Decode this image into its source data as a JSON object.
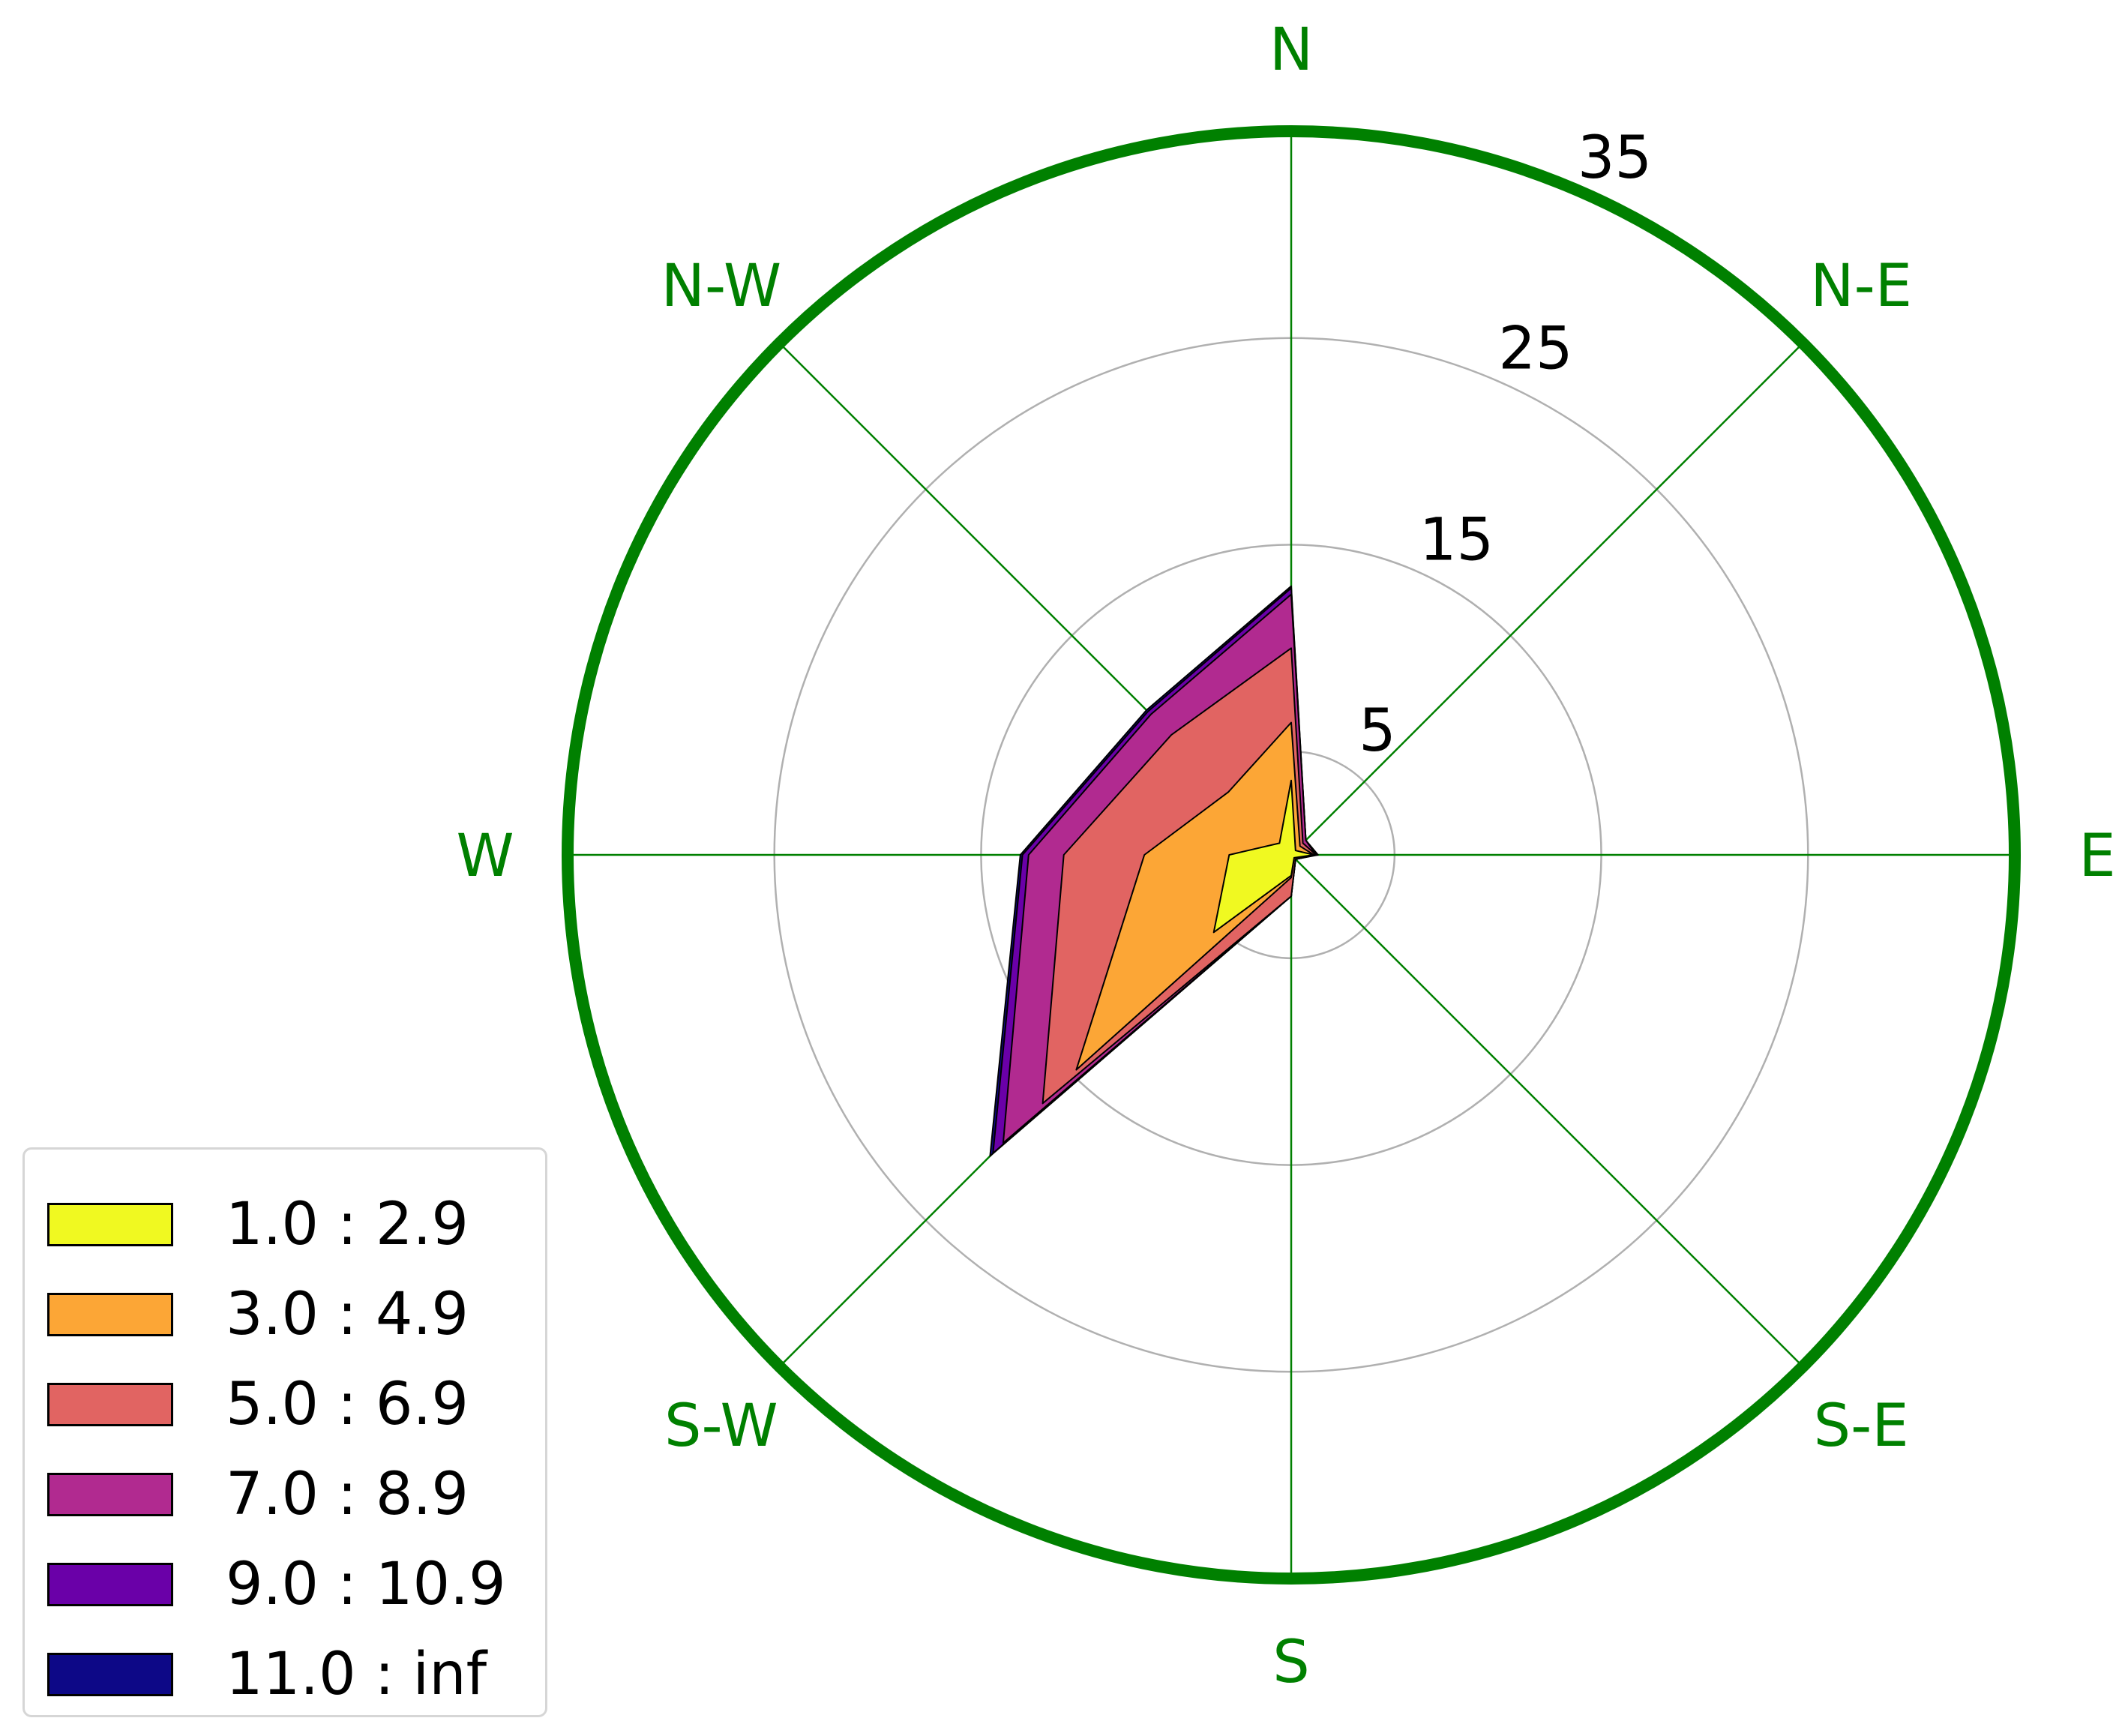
{
  "chart_data": {
    "type": "windrose-area",
    "directions": [
      "N",
      "N-E",
      "E",
      "S-E",
      "S",
      "S-W",
      "W",
      "N-W"
    ],
    "radial_ticks": [
      5,
      15,
      25,
      35
    ],
    "rmax": 35,
    "grid": true,
    "legend_position": "lower-left",
    "series": [
      {
        "name": "1.0 : 2.9",
        "color": "#f0f921",
        "values": [
          3.6,
          0.3,
          1.1,
          0.2,
          1.0,
          5.3,
          3.0,
          0.8
        ]
      },
      {
        "name": "3.0 : 4.9",
        "color": "#fca636",
        "values": [
          6.4,
          0.6,
          1.1,
          0.2,
          1.1,
          14.7,
          7.1,
          4.3
        ]
      },
      {
        "name": "5.0 : 6.9",
        "color": "#e16462",
        "values": [
          10.0,
          0.8,
          1.2,
          0.3,
          2.0,
          17.0,
          11.0,
          8.2
        ]
      },
      {
        "name": "7.0 : 8.9",
        "color": "#b12a90",
        "values": [
          12.6,
          1.0,
          1.2,
          0.3,
          2.0,
          19.7,
          12.7,
          9.6
        ]
      },
      {
        "name": "9.0 : 10.9",
        "color": "#6a00a8",
        "values": [
          12.9,
          1.0,
          1.2,
          0.3,
          2.0,
          20.4,
          13.0,
          9.8
        ]
      },
      {
        "name": "11.0 : inf",
        "color": "#0d0887",
        "values": [
          13.0,
          1.0,
          1.3,
          0.3,
          2.0,
          20.6,
          13.1,
          9.9
        ]
      }
    ],
    "colors": {
      "frame": "#008000",
      "spokes": "#008000",
      "direction_labels": "#008000",
      "rings": "#b0b0b0"
    }
  }
}
